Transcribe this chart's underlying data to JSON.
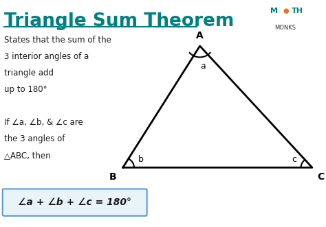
{
  "title": "Triangle Sum Theorem",
  "title_color": "#008080",
  "bg_color": "#ffffff",
  "text_color": "#1a1a1a",
  "body_lines": [
    "States that the sum of the",
    "3 interior angles of a",
    "triangle add",
    "up to 180°",
    "",
    "If ∠a, ∠b, & ∠c are",
    "the 3 angles of",
    "△ABC, then"
  ],
  "formula": "∠a + ∠b + ∠c = 180°",
  "formula_bg": "#e8f4f8",
  "formula_border": "#5b9bd5",
  "triangle_A": [
    0.62,
    0.8
  ],
  "triangle_B": [
    0.38,
    0.26
  ],
  "triangle_C": [
    0.97,
    0.26
  ],
  "vertex_A_label": "A",
  "vertex_B_label": "B",
  "vertex_C_label": "C",
  "angle_A_label": "a",
  "angle_B_label": "b",
  "angle_C_label": "c",
  "triangle_color": "#000000",
  "triangle_lw": 2.0,
  "logo_math_color": "#008080",
  "logo_o_color": "#e07820",
  "logo_monks_color": "#333333"
}
